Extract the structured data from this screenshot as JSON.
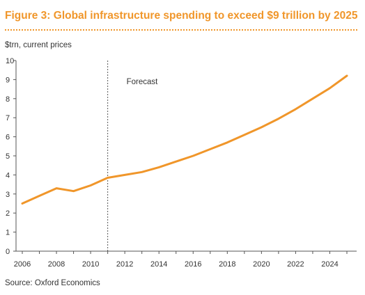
{
  "figure": {
    "title": "Figure 3:  Global infrastructure spending to exceed $9 trillion by 2025",
    "unit_label": "$trn, current prices",
    "source": "Source: Oxford Economics"
  },
  "chart_data": {
    "type": "line",
    "title": "Figure 3:  Global infrastructure spending to exceed $9 trillion by 2025",
    "xlabel": "",
    "ylabel": "$trn, current prices",
    "xlim": [
      2006,
      2025
    ],
    "ylim": [
      0,
      10
    ],
    "x_ticks": [
      "2006",
      "2008",
      "2010",
      "2012",
      "2014",
      "2016",
      "2018",
      "2020",
      "2022",
      "2024"
    ],
    "y_ticks": [
      "0",
      "1",
      "2",
      "3",
      "4",
      "5",
      "6",
      "7",
      "8",
      "9",
      "10"
    ],
    "grid": false,
    "legend": "none",
    "color": "#f0962a",
    "series": [
      {
        "x": [
          2006,
          2007,
          2008,
          2009,
          2010,
          2011,
          2012,
          2013,
          2014,
          2015,
          2016,
          2017,
          2018,
          2019,
          2020,
          2021,
          2022,
          2023,
          2024,
          2025
        ],
        "values": [
          2.5,
          2.9,
          3.3,
          3.15,
          3.45,
          3.85,
          4.0,
          4.15,
          4.4,
          4.7,
          5.0,
          5.35,
          5.7,
          6.1,
          6.5,
          6.95,
          7.45,
          8.0,
          8.55,
          9.2
        ]
      }
    ],
    "annotations": [
      {
        "text": "Forecast",
        "x": 2011
      }
    ]
  }
}
